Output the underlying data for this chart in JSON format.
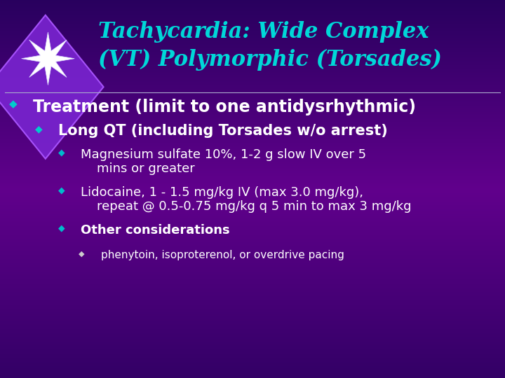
{
  "bg_color_top": "#2a0060",
  "bg_color_mid": "#5500aa",
  "bg_color_bottom": "#3a0070",
  "title_line1": "Tachycardia: Wide Complex",
  "title_line2": "(VT) Polymorphic (Torsades)",
  "title_color": "#00d8d8",
  "title_fontsize": 22,
  "bullet_color_l0": "#00cccc",
  "bullet_color_l1": "#00cccc",
  "bullet_color_l2": "#00aacc",
  "bullet_color_l3": "#aaaaaa",
  "text_color_main": "#ffffff",
  "lines": [
    {
      "level": 0,
      "text": "Treatment (limit to one antidysrhythmic)",
      "bold": true,
      "size": 17
    },
    {
      "level": 1,
      "text": "Long QT (including Torsades w/o arrest)",
      "bold": true,
      "size": 15
    },
    {
      "level": 2,
      "text": "Magnesium sulfate 10%, 1-2 g slow IV over 5\n    mins or greater",
      "bold": false,
      "size": 13
    },
    {
      "level": 2,
      "text": "Lidocaine, 1 - 1.5 mg/kg IV (max 3.0 mg/kg),\n    repeat @ 0.5-0.75 mg/kg q 5 min to max 3 mg/kg",
      "bold": false,
      "size": 13
    },
    {
      "level": 2,
      "text": "Other considerations",
      "bold": true,
      "size": 13
    },
    {
      "level": 3,
      "text": "phenytoin, isoproterenol, or overdrive pacing",
      "bold": false,
      "size": 11
    }
  ]
}
